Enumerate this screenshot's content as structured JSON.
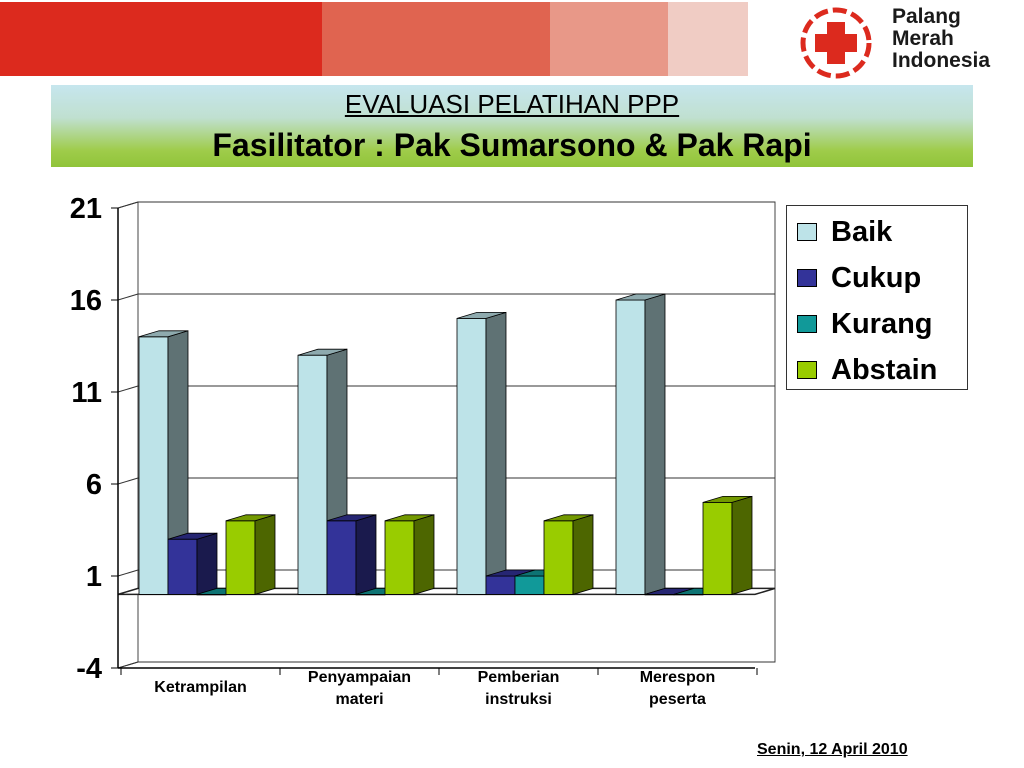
{
  "header": {
    "logo_lines": [
      "Palang",
      "Merah",
      "Indonesia"
    ],
    "bar_colors": [
      "#dc2a1e",
      "#e06450",
      "#e89888",
      "#f0ccc4"
    ]
  },
  "title": {
    "main": "EVALUASI PELATIHAN PPP",
    "sub": "Fasilitator : Pak Sumarsono & Pak Rapi"
  },
  "chart_data": {
    "type": "bar",
    "categories": [
      "Ketrampilan",
      "Penyampaian materi",
      "Pemberian instruksi",
      "Merespon peserta"
    ],
    "category_lines": [
      [
        "Ketrampilan"
      ],
      [
        "Penyampaian",
        "materi"
      ],
      [
        "Pemberian",
        "instruksi"
      ],
      [
        "Merespon",
        "peserta"
      ]
    ],
    "series": [
      {
        "name": "Baik",
        "values": [
          14,
          13,
          15,
          16
        ],
        "color": "#bde3e8"
      },
      {
        "name": "Cukup",
        "values": [
          3,
          4,
          1,
          0
        ],
        "color": "#333399"
      },
      {
        "name": "Kurang",
        "values": [
          0,
          0,
          1,
          0
        ],
        "color": "#119999"
      },
      {
        "name": "Abstain",
        "values": [
          4,
          4,
          4,
          5
        ],
        "color": "#99cc00"
      }
    ],
    "yticks": [
      21,
      16,
      11,
      6,
      1,
      -4
    ],
    "ylim": [
      -4,
      21
    ],
    "grid": true,
    "legend_position": "right",
    "three_d": true
  },
  "footer": {
    "date": "Senin, 12 April 2010"
  }
}
